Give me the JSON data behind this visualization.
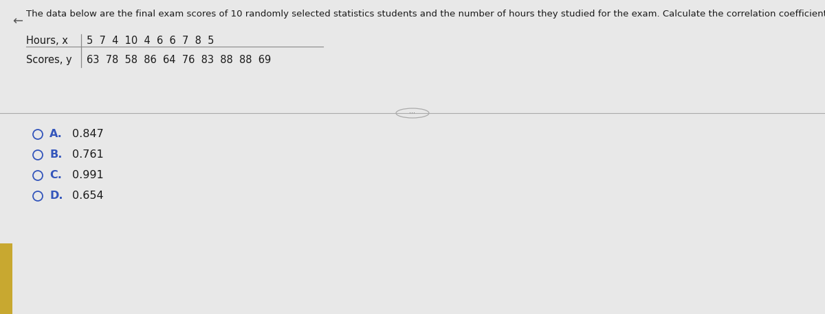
{
  "title": "The data below are the final exam scores of 10 randomly selected statistics students and the number of hours they studied for the exam. Calculate the correlation coefficient r.",
  "hours_label": "Hours, x",
  "scores_label": "Scores, y",
  "hours": [
    5,
    7,
    4,
    10,
    4,
    6,
    6,
    7,
    8,
    5
  ],
  "scores": [
    63,
    78,
    58,
    86,
    64,
    76,
    83,
    88,
    88,
    69
  ],
  "options": [
    {
      "letter": "A.",
      "value": "0.847"
    },
    {
      "letter": "B.",
      "value": "0.761"
    },
    {
      "letter": "C.",
      "value": "0.991"
    },
    {
      "letter": "D.",
      "value": "0.654"
    }
  ],
  "bg_color": "#e8e8e8",
  "main_bg": "#e8e8e8",
  "text_color": "#1a1a1a",
  "option_letter_color": "#3355bb",
  "option_value_color": "#1a1a1a",
  "title_fontsize": 9.5,
  "table_fontsize": 10.5,
  "option_fontsize": 11.5,
  "left_bar_color": "#c8a830",
  "separator_color": "#aaaaaa",
  "table_line_color": "#888888",
  "arrow_color": "#555555"
}
